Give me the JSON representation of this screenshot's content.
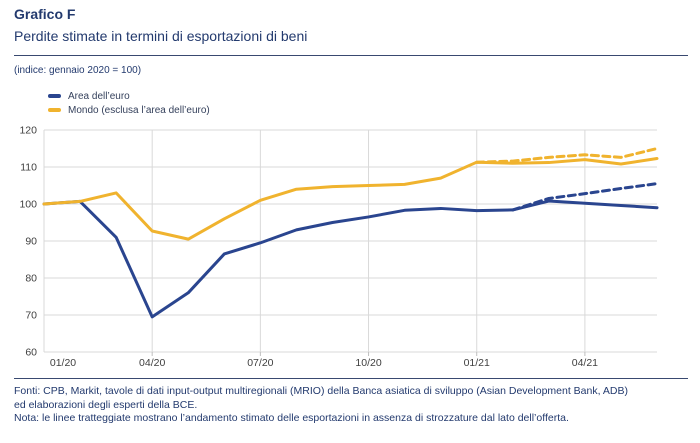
{
  "header": {
    "label": "Grafico F",
    "title": "Perdite stimate in termini di esportazioni di beni",
    "index_note": "(indice: gennaio 2020 = 100)"
  },
  "legend": [
    {
      "label": "Area dell’euro",
      "color": "#2A458F"
    },
    {
      "label": "Mondo (esclusa l’area dell’euro)",
      "color": "#F0B32E"
    }
  ],
  "chart_data": {
    "type": "line",
    "title": "Perdite stimate in termini di esportazioni di beni",
    "index_note": "(indice: gennaio 2020 = 100)",
    "x": [
      "01/20",
      "02/20",
      "03/20",
      "04/20",
      "05/20",
      "06/20",
      "07/20",
      "08/20",
      "09/20",
      "10/20",
      "11/20",
      "12/20",
      "01/21",
      "02/21",
      "03/21",
      "04/21",
      "05/21",
      "06/21"
    ],
    "series": [
      {
        "name": "Area dell’euro",
        "style": "solid",
        "color": "#2A458F",
        "start_index": 0,
        "values": [
          100,
          100.7,
          91,
          69.5,
          76,
          86.5,
          89.5,
          93,
          95,
          96.5,
          98.3,
          98.8,
          98.2,
          98.4,
          100.8,
          100.2,
          99.6,
          99
        ]
      },
      {
        "name": "Area dell’euro (linea tratteggiata: stima senza strozzature)",
        "style": "dashed",
        "color": "#2A458F",
        "start_index": 13,
        "values": [
          98.4,
          101.5,
          102.8,
          104.2,
          105.5
        ]
      },
      {
        "name": "Mondo (esclusa l’area dell’euro)",
        "style": "solid",
        "color": "#F0B32E",
        "start_index": 0,
        "values": [
          100,
          100.7,
          103,
          92.7,
          90.5,
          96,
          101,
          104,
          104.7,
          105,
          105.3,
          107,
          111.3,
          111,
          111.2,
          112,
          110.8,
          112.3
        ]
      },
      {
        "name": "Mondo esclusa l’area dell’euro (linea tratteggiata: stima senza strozzature)",
        "style": "dashed",
        "color": "#F0B32E",
        "start_index": 12,
        "values": [
          111.3,
          111.6,
          112.6,
          113.3,
          112.6,
          115
        ]
      }
    ],
    "ylim": [
      60,
      120
    ],
    "ytick_step": 10,
    "yticks": [
      60,
      70,
      80,
      90,
      100,
      110,
      120
    ],
    "xtick_labels": [
      "01/20",
      "04/20",
      "07/20",
      "10/20",
      "01/21",
      "04/21"
    ],
    "xtick_month_indices": [
      0,
      3,
      6,
      9,
      12,
      15
    ],
    "grid": true,
    "legend_position": "top-left"
  },
  "footer": {
    "source_line1": "Fonti: CPB, Markit, tavole di dati input-output multiregionali (MRIO) della Banca asiatica di sviluppo (Asian Development Bank, ADB)",
    "source_line2": "ed elaborazioni degli esperti della BCE.",
    "note": "Nota: le linee tratteggiate mostrano l’andamento stimato delle esportazioni in assenza di strozzature dal lato dell’offerta."
  },
  "colors": {
    "accent_text": "#233A6E",
    "euro_line": "#2A458F",
    "world_line": "#F0B32E",
    "gridline": "#D9D9D9",
    "axis_label": "#404040"
  }
}
